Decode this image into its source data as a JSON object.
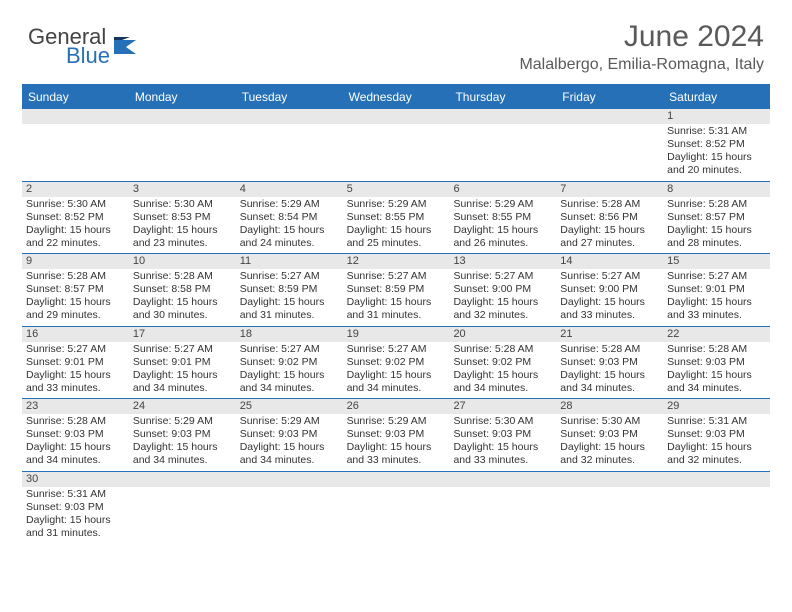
{
  "brand": {
    "general": "General",
    "blue": "Blue"
  },
  "title": "June 2024",
  "location": "Malalbergo, Emilia-Romagna, Italy",
  "colors": {
    "header_bg": "#2670b8",
    "header_text": "#ffffff",
    "daynum_bg": "#e8e8e8",
    "border": "#2670b8",
    "text": "#333333",
    "title_text": "#5a5a5a"
  },
  "day_headers": [
    "Sunday",
    "Monday",
    "Tuesday",
    "Wednesday",
    "Thursday",
    "Friday",
    "Saturday"
  ],
  "weeks": [
    [
      {
        "blank": true
      },
      {
        "blank": true
      },
      {
        "blank": true
      },
      {
        "blank": true
      },
      {
        "blank": true
      },
      {
        "blank": true
      },
      {
        "n": "1",
        "sr": "Sunrise: 5:31 AM",
        "ss": "Sunset: 8:52 PM",
        "d1": "Daylight: 15 hours",
        "d2": "and 20 minutes."
      }
    ],
    [
      {
        "n": "2",
        "sr": "Sunrise: 5:30 AM",
        "ss": "Sunset: 8:52 PM",
        "d1": "Daylight: 15 hours",
        "d2": "and 22 minutes."
      },
      {
        "n": "3",
        "sr": "Sunrise: 5:30 AM",
        "ss": "Sunset: 8:53 PM",
        "d1": "Daylight: 15 hours",
        "d2": "and 23 minutes."
      },
      {
        "n": "4",
        "sr": "Sunrise: 5:29 AM",
        "ss": "Sunset: 8:54 PM",
        "d1": "Daylight: 15 hours",
        "d2": "and 24 minutes."
      },
      {
        "n": "5",
        "sr": "Sunrise: 5:29 AM",
        "ss": "Sunset: 8:55 PM",
        "d1": "Daylight: 15 hours",
        "d2": "and 25 minutes."
      },
      {
        "n": "6",
        "sr": "Sunrise: 5:29 AM",
        "ss": "Sunset: 8:55 PM",
        "d1": "Daylight: 15 hours",
        "d2": "and 26 minutes."
      },
      {
        "n": "7",
        "sr": "Sunrise: 5:28 AM",
        "ss": "Sunset: 8:56 PM",
        "d1": "Daylight: 15 hours",
        "d2": "and 27 minutes."
      },
      {
        "n": "8",
        "sr": "Sunrise: 5:28 AM",
        "ss": "Sunset: 8:57 PM",
        "d1": "Daylight: 15 hours",
        "d2": "and 28 minutes."
      }
    ],
    [
      {
        "n": "9",
        "sr": "Sunrise: 5:28 AM",
        "ss": "Sunset: 8:57 PM",
        "d1": "Daylight: 15 hours",
        "d2": "and 29 minutes."
      },
      {
        "n": "10",
        "sr": "Sunrise: 5:28 AM",
        "ss": "Sunset: 8:58 PM",
        "d1": "Daylight: 15 hours",
        "d2": "and 30 minutes."
      },
      {
        "n": "11",
        "sr": "Sunrise: 5:27 AM",
        "ss": "Sunset: 8:59 PM",
        "d1": "Daylight: 15 hours",
        "d2": "and 31 minutes."
      },
      {
        "n": "12",
        "sr": "Sunrise: 5:27 AM",
        "ss": "Sunset: 8:59 PM",
        "d1": "Daylight: 15 hours",
        "d2": "and 31 minutes."
      },
      {
        "n": "13",
        "sr": "Sunrise: 5:27 AM",
        "ss": "Sunset: 9:00 PM",
        "d1": "Daylight: 15 hours",
        "d2": "and 32 minutes."
      },
      {
        "n": "14",
        "sr": "Sunrise: 5:27 AM",
        "ss": "Sunset: 9:00 PM",
        "d1": "Daylight: 15 hours",
        "d2": "and 33 minutes."
      },
      {
        "n": "15",
        "sr": "Sunrise: 5:27 AM",
        "ss": "Sunset: 9:01 PM",
        "d1": "Daylight: 15 hours",
        "d2": "and 33 minutes."
      }
    ],
    [
      {
        "n": "16",
        "sr": "Sunrise: 5:27 AM",
        "ss": "Sunset: 9:01 PM",
        "d1": "Daylight: 15 hours",
        "d2": "and 33 minutes."
      },
      {
        "n": "17",
        "sr": "Sunrise: 5:27 AM",
        "ss": "Sunset: 9:01 PM",
        "d1": "Daylight: 15 hours",
        "d2": "and 34 minutes."
      },
      {
        "n": "18",
        "sr": "Sunrise: 5:27 AM",
        "ss": "Sunset: 9:02 PM",
        "d1": "Daylight: 15 hours",
        "d2": "and 34 minutes."
      },
      {
        "n": "19",
        "sr": "Sunrise: 5:27 AM",
        "ss": "Sunset: 9:02 PM",
        "d1": "Daylight: 15 hours",
        "d2": "and 34 minutes."
      },
      {
        "n": "20",
        "sr": "Sunrise: 5:28 AM",
        "ss": "Sunset: 9:02 PM",
        "d1": "Daylight: 15 hours",
        "d2": "and 34 minutes."
      },
      {
        "n": "21",
        "sr": "Sunrise: 5:28 AM",
        "ss": "Sunset: 9:03 PM",
        "d1": "Daylight: 15 hours",
        "d2": "and 34 minutes."
      },
      {
        "n": "22",
        "sr": "Sunrise: 5:28 AM",
        "ss": "Sunset: 9:03 PM",
        "d1": "Daylight: 15 hours",
        "d2": "and 34 minutes."
      }
    ],
    [
      {
        "n": "23",
        "sr": "Sunrise: 5:28 AM",
        "ss": "Sunset: 9:03 PM",
        "d1": "Daylight: 15 hours",
        "d2": "and 34 minutes."
      },
      {
        "n": "24",
        "sr": "Sunrise: 5:29 AM",
        "ss": "Sunset: 9:03 PM",
        "d1": "Daylight: 15 hours",
        "d2": "and 34 minutes."
      },
      {
        "n": "25",
        "sr": "Sunrise: 5:29 AM",
        "ss": "Sunset: 9:03 PM",
        "d1": "Daylight: 15 hours",
        "d2": "and 34 minutes."
      },
      {
        "n": "26",
        "sr": "Sunrise: 5:29 AM",
        "ss": "Sunset: 9:03 PM",
        "d1": "Daylight: 15 hours",
        "d2": "and 33 minutes."
      },
      {
        "n": "27",
        "sr": "Sunrise: 5:30 AM",
        "ss": "Sunset: 9:03 PM",
        "d1": "Daylight: 15 hours",
        "d2": "and 33 minutes."
      },
      {
        "n": "28",
        "sr": "Sunrise: 5:30 AM",
        "ss": "Sunset: 9:03 PM",
        "d1": "Daylight: 15 hours",
        "d2": "and 32 minutes."
      },
      {
        "n": "29",
        "sr": "Sunrise: 5:31 AM",
        "ss": "Sunset: 9:03 PM",
        "d1": "Daylight: 15 hours",
        "d2": "and 32 minutes."
      }
    ],
    [
      {
        "n": "30",
        "sr": "Sunrise: 5:31 AM",
        "ss": "Sunset: 9:03 PM",
        "d1": "Daylight: 15 hours",
        "d2": "and 31 minutes."
      },
      {
        "blank": true
      },
      {
        "blank": true
      },
      {
        "blank": true
      },
      {
        "blank": true
      },
      {
        "blank": true
      },
      {
        "blank": true
      }
    ]
  ]
}
